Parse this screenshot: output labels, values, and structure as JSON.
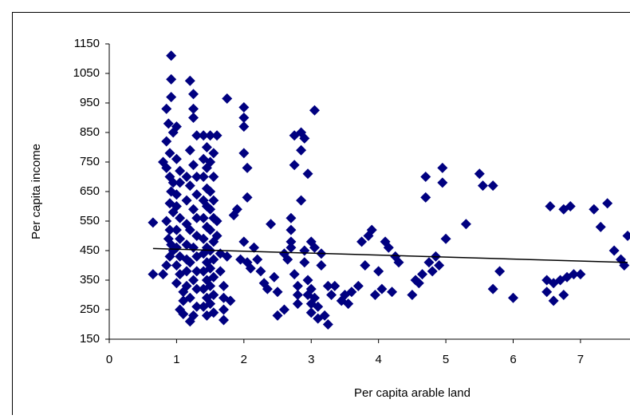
{
  "chart_data": {
    "type": "scatter",
    "x_label": "Per capita arable land",
    "y_label": "Per capita income",
    "color": "#000080",
    "x": [
      0.92,
      0.92,
      0.92,
      0.85,
      0.88,
      0.95,
      0.85,
      0.9,
      0.8,
      0.85,
      0.9,
      0.95,
      0.92,
      0.9,
      0.95,
      0.85,
      0.9,
      0.88,
      0.92,
      0.95,
      0.9,
      0.85,
      0.8,
      0.65,
      0.65,
      1.0,
      1.0,
      1.05,
      1.05,
      1.0,
      1.0,
      1.05,
      1.0,
      1.05,
      1.0,
      1.05,
      1.0,
      1.05,
      1.0,
      1.1,
      1.1,
      1.05,
      1.1,
      1.15,
      1.15,
      1.15,
      1.15,
      1.15,
      1.15,
      1.15,
      1.2,
      1.25,
      1.25,
      1.25,
      1.3,
      1.2,
      1.25,
      1.3,
      1.2,
      1.3,
      1.25,
      1.3,
      1.2,
      1.3,
      1.25,
      1.3,
      1.2,
      1.3,
      1.25,
      1.3,
      1.2,
      1.3,
      1.25,
      1.2,
      1.4,
      1.45,
      1.4,
      1.45,
      1.4,
      1.45,
      1.4,
      1.45,
      1.4,
      1.45,
      1.4,
      1.45,
      1.4,
      1.45,
      1.4,
      1.45,
      1.4,
      1.45,
      1.4,
      1.45,
      1.5,
      1.55,
      1.5,
      1.55,
      1.5,
      1.55,
      1.5,
      1.55,
      1.5,
      1.55,
      1.5,
      1.55,
      1.5,
      1.55,
      1.5,
      1.55,
      1.5,
      1.55,
      1.6,
      1.6,
      1.6,
      1.65,
      1.65,
      1.7,
      1.7,
      1.7,
      1.7,
      1.75,
      1.75,
      1.8,
      1.85,
      1.9,
      1.95,
      2.0,
      2.0,
      2.0,
      2.0,
      2.05,
      2.05,
      2.0,
      2.05,
      2.1,
      2.15,
      2.2,
      2.25,
      2.3,
      2.35,
      2.4,
      2.45,
      2.5,
      2.5,
      2.6,
      2.6,
      2.65,
      2.7,
      2.7,
      2.7,
      2.7,
      2.75,
      2.75,
      2.75,
      2.8,
      2.8,
      2.8,
      2.85,
      2.85,
      2.85,
      2.9,
      2.9,
      2.9,
      2.95,
      2.95,
      2.95,
      3.0,
      3.0,
      3.0,
      3.0,
      3.05,
      3.05,
      3.05,
      3.1,
      3.1,
      3.15,
      3.15,
      3.2,
      3.25,
      3.25,
      3.3,
      3.35,
      3.45,
      3.5,
      3.55,
      3.6,
      3.7,
      3.75,
      3.8,
      3.85,
      3.9,
      3.95,
      4.0,
      4.05,
      4.1,
      4.15,
      4.2,
      4.25,
      4.3,
      4.5,
      4.55,
      4.6,
      4.65,
      4.7,
      4.7,
      4.75,
      4.8,
      4.85,
      4.9,
      4.95,
      4.95,
      5.0,
      5.3,
      5.5,
      5.55,
      5.7,
      5.7,
      5.8,
      6.0,
      6.5,
      6.5,
      6.55,
      6.6,
      6.6,
      6.7,
      6.75,
      6.75,
      6.8,
      6.85,
      6.9,
      7.0,
      7.2,
      7.3,
      7.4,
      7.5,
      7.6,
      7.65,
      7.7
    ],
    "y": [
      1110,
      1030,
      970,
      930,
      880,
      850,
      820,
      780,
      750,
      730,
      700,
      680,
      650,
      610,
      580,
      550,
      520,
      490,
      470,
      450,
      430,
      400,
      370,
      545,
      370,
      760,
      870,
      720,
      680,
      640,
      600,
      560,
      520,
      490,
      460,
      430,
      400,
      370,
      340,
      310,
      280,
      250,
      235,
      700,
      620,
      540,
      470,
      420,
      380,
      330,
      1025,
      980,
      930,
      900,
      840,
      790,
      740,
      700,
      670,
      640,
      590,
      560,
      520,
      500,
      460,
      430,
      410,
      380,
      350,
      320,
      290,
      260,
      230,
      210,
      840,
      800,
      760,
      730,
      700,
      660,
      620,
      600,
      560,
      530,
      490,
      460,
      440,
      410,
      380,
      350,
      320,
      290,
      260,
      230,
      840,
      780,
      750,
      700,
      650,
      620,
      590,
      560,
      520,
      480,
      450,
      420,
      390,
      360,
      330,
      300,
      270,
      240,
      840,
      550,
      500,
      440,
      380,
      330,
      290,
      250,
      215,
      965,
      430,
      280,
      570,
      590,
      420,
      935,
      900,
      870,
      780,
      730,
      630,
      480,
      410,
      390,
      460,
      420,
      380,
      340,
      320,
      540,
      360,
      310,
      230,
      250,
      440,
      420,
      560,
      520,
      480,
      460,
      840,
      740,
      370,
      330,
      300,
      270,
      620,
      850,
      790,
      830,
      450,
      410,
      710,
      350,
      300,
      480,
      320,
      270,
      240,
      925,
      460,
      290,
      260,
      220,
      440,
      400,
      230,
      330,
      200,
      300,
      330,
      280,
      300,
      270,
      310,
      330,
      480,
      400,
      500,
      520,
      300,
      380,
      320,
      480,
      460,
      310,
      430,
      410,
      300,
      350,
      340,
      370,
      630,
      700,
      410,
      380,
      430,
      400,
      730,
      680,
      490,
      540,
      710,
      670,
      670,
      320,
      380,
      290,
      350,
      310,
      600,
      340,
      280,
      350,
      590,
      300,
      360,
      600,
      370,
      370,
      590,
      530,
      610,
      450,
      420,
      400,
      500
    ],
    "trendline": {
      "x": [
        0.65,
        7.7
      ],
      "y": [
        457,
        410
      ],
      "color": "#000000"
    },
    "xlim": [
      0,
      7.7
    ],
    "xticks": [
      0,
      1,
      2,
      3,
      4,
      5,
      6,
      7
    ],
    "ylim": [
      150,
      1150
    ],
    "yticks": [
      150,
      250,
      350,
      450,
      550,
      650,
      750,
      850,
      950,
      1050,
      1150
    ]
  }
}
